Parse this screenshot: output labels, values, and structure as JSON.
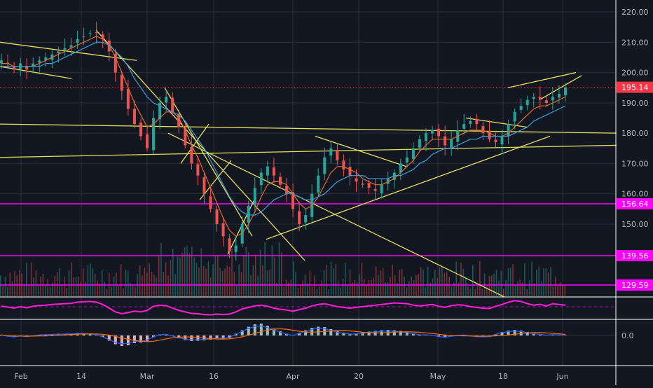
{
  "chart_data": {
    "type": "candlestick",
    "price_axis": {
      "ticks": [
        "220.00",
        "210.00",
        "200.00",
        "190.00",
        "180.00",
        "170.00",
        "160.00",
        "150.00"
      ],
      "range": [
        125,
        222
      ]
    },
    "date_labels": [
      "Feb",
      "14",
      "Mar",
      "16",
      "Apr",
      "20",
      "May",
      "18",
      "Jun"
    ],
    "horizontal_levels": [
      {
        "value": 156.64,
        "label": "156.64",
        "color": "#ff00ff"
      },
      {
        "value": 139.56,
        "label": "139.56",
        "color": "#ff00ff"
      },
      {
        "value": 129.59,
        "label": "129.59",
        "color": "#ff00ff"
      }
    ],
    "last_price": {
      "value": 195.14,
      "label": "195.14",
      "color": "#f23645"
    },
    "close_series": [
      204,
      203,
      201,
      203,
      201,
      203,
      204,
      205,
      206,
      207,
      208,
      209,
      211,
      212,
      213,
      213,
      211,
      207,
      200,
      194,
      188,
      183,
      179,
      175,
      185,
      190,
      192,
      187,
      182,
      176,
      170,
      166,
      160,
      155,
      150,
      146,
      141,
      143,
      150,
      156,
      162,
      167,
      169,
      166,
      163,
      160,
      155,
      150,
      153,
      160,
      166,
      172,
      175,
      171,
      168,
      166,
      164,
      163,
      162,
      161,
      163,
      165,
      167,
      170,
      172,
      175,
      178,
      180,
      181,
      179,
      176,
      178,
      181,
      183,
      184,
      183,
      180,
      178,
      177,
      179,
      183,
      187,
      189,
      191,
      192,
      191,
      190,
      192,
      193,
      195
    ],
    "ma_fast": [
      203,
      203,
      202,
      202,
      202,
      202,
      203,
      204,
      205,
      206,
      207,
      208,
      209,
      210,
      211,
      212,
      211,
      209,
      205,
      200,
      195,
      190,
      186,
      182,
      183,
      185,
      187,
      187,
      185,
      181,
      176,
      172,
      167,
      162,
      157,
      152,
      148,
      146,
      147,
      150,
      154,
      159,
      163,
      164,
      164,
      163,
      160,
      157,
      155,
      156,
      159,
      163,
      167,
      169,
      169,
      168,
      167,
      165,
      164,
      163,
      163,
      164,
      165,
      167,
      169,
      171,
      174,
      176,
      178,
      178,
      178,
      178,
      179,
      180,
      181,
      181,
      181,
      180,
      179,
      179,
      180,
      182,
      184,
      186,
      188,
      189,
      189,
      190,
      191,
      192
    ],
    "ma_slow": [
      202,
      202,
      202,
      202,
      202,
      202,
      202,
      203,
      203,
      204,
      205,
      206,
      207,
      208,
      209,
      210,
      210,
      209,
      207,
      205,
      202,
      198,
      195,
      192,
      190,
      189,
      188,
      187,
      186,
      184,
      181,
      178,
      175,
      171,
      167,
      163,
      159,
      156,
      154,
      153,
      153,
      154,
      156,
      158,
      159,
      160,
      160,
      159,
      158,
      158,
      159,
      160,
      162,
      164,
      165,
      166,
      166,
      166,
      165,
      165,
      165,
      165,
      166,
      166,
      167,
      168,
      170,
      171,
      173,
      174,
      175,
      175,
      176,
      177,
      178,
      178,
      179,
      179,
      179,
      179,
      179,
      180,
      181,
      182,
      184,
      185,
      186,
      187,
      188,
      189
    ],
    "rsi_series": [
      55,
      53,
      50,
      54,
      51,
      55,
      57,
      58,
      60,
      61,
      62,
      63,
      66,
      67,
      68,
      66,
      60,
      50,
      40,
      35,
      38,
      42,
      40,
      44,
      55,
      58,
      57,
      50,
      44,
      40,
      36,
      35,
      33,
      32,
      34,
      33,
      34,
      40,
      48,
      52,
      56,
      58,
      55,
      50,
      47,
      45,
      42,
      46,
      50,
      56,
      60,
      62,
      58,
      54,
      52,
      50,
      52,
      54,
      56,
      58,
      60,
      62,
      64,
      63,
      62,
      58,
      56,
      58,
      60,
      55,
      52,
      57,
      59,
      58,
      54,
      52,
      50,
      49,
      55,
      60,
      66,
      70,
      68,
      62,
      58,
      60,
      56,
      62,
      60,
      58
    ],
    "macd_hist": [
      0.2,
      -0.3,
      -0.5,
      -0.2,
      -0.4,
      -0.1,
      0.2,
      0.3,
      0.4,
      0.5,
      0.5,
      0.6,
      0.7,
      0.7,
      0.6,
      0.3,
      -0.5,
      -1.5,
      -2.5,
      -3,
      -2.8,
      -2.2,
      -2,
      -1.6,
      -0.5,
      0.3,
      0.4,
      -0.2,
      -0.8,
      -1.3,
      -1.6,
      -1.5,
      -1.4,
      -1.2,
      -1,
      -0.9,
      -0.8,
      0.5,
      1.5,
      2.5,
      3.2,
      3.4,
      2.8,
      2,
      1.2,
      0.5,
      0,
      0.8,
      1.5,
      2.2,
      2.5,
      2.4,
      1.8,
      1.2,
      0.8,
      0.5,
      0.6,
      0.8,
      1.1,
      1.3,
      1.5,
      1.6,
      1.5,
      1.3,
      1,
      0.6,
      0.3,
      0.2,
      0.1,
      -0.4,
      -0.6,
      -0.3,
      0,
      0.2,
      -0.2,
      -0.4,
      -0.5,
      -0.4,
      0.4,
      1,
      1.4,
      1.6,
      1.4,
      1,
      0.6,
      0.4,
      0.1,
      0.3,
      0.2,
      0.1
    ],
    "macd_axis": {
      "tick": "0.0"
    },
    "trendlines": [
      {
        "x1": 0,
        "y1": 210,
        "x2": 195,
        "y2": 204
      },
      {
        "x1": 0,
        "y1": 202,
        "x2": 102,
        "y2": 198
      },
      {
        "x1": 137,
        "y1": 214,
        "x2": 435,
        "y2": 138
      },
      {
        "x1": 0,
        "y1": 183,
        "x2": 880,
        "y2": 180
      },
      {
        "x1": 0,
        "y1": 172,
        "x2": 880,
        "y2": 176
      },
      {
        "x1": 235,
        "y1": 195,
        "x2": 360,
        "y2": 146
      },
      {
        "x1": 258,
        "y1": 170,
        "x2": 298,
        "y2": 183
      },
      {
        "x1": 285,
        "y1": 158,
        "x2": 330,
        "y2": 171
      },
      {
        "x1": 325,
        "y1": 140,
        "x2": 365,
        "y2": 159
      },
      {
        "x1": 380,
        "y1": 145,
        "x2": 785,
        "y2": 179
      },
      {
        "x1": 450,
        "y1": 179,
        "x2": 580,
        "y2": 169
      },
      {
        "x1": 665,
        "y1": 185,
        "x2": 752,
        "y2": 182
      },
      {
        "x1": 725,
        "y1": 195,
        "x2": 822,
        "y2": 200
      },
      {
        "x1": 770,
        "y1": 191,
        "x2": 830,
        "y2": 199
      }
    ],
    "long_downtrend": {
      "x1": 240,
      "y1": 180,
      "x2": 720,
      "y2": 128
    }
  }
}
